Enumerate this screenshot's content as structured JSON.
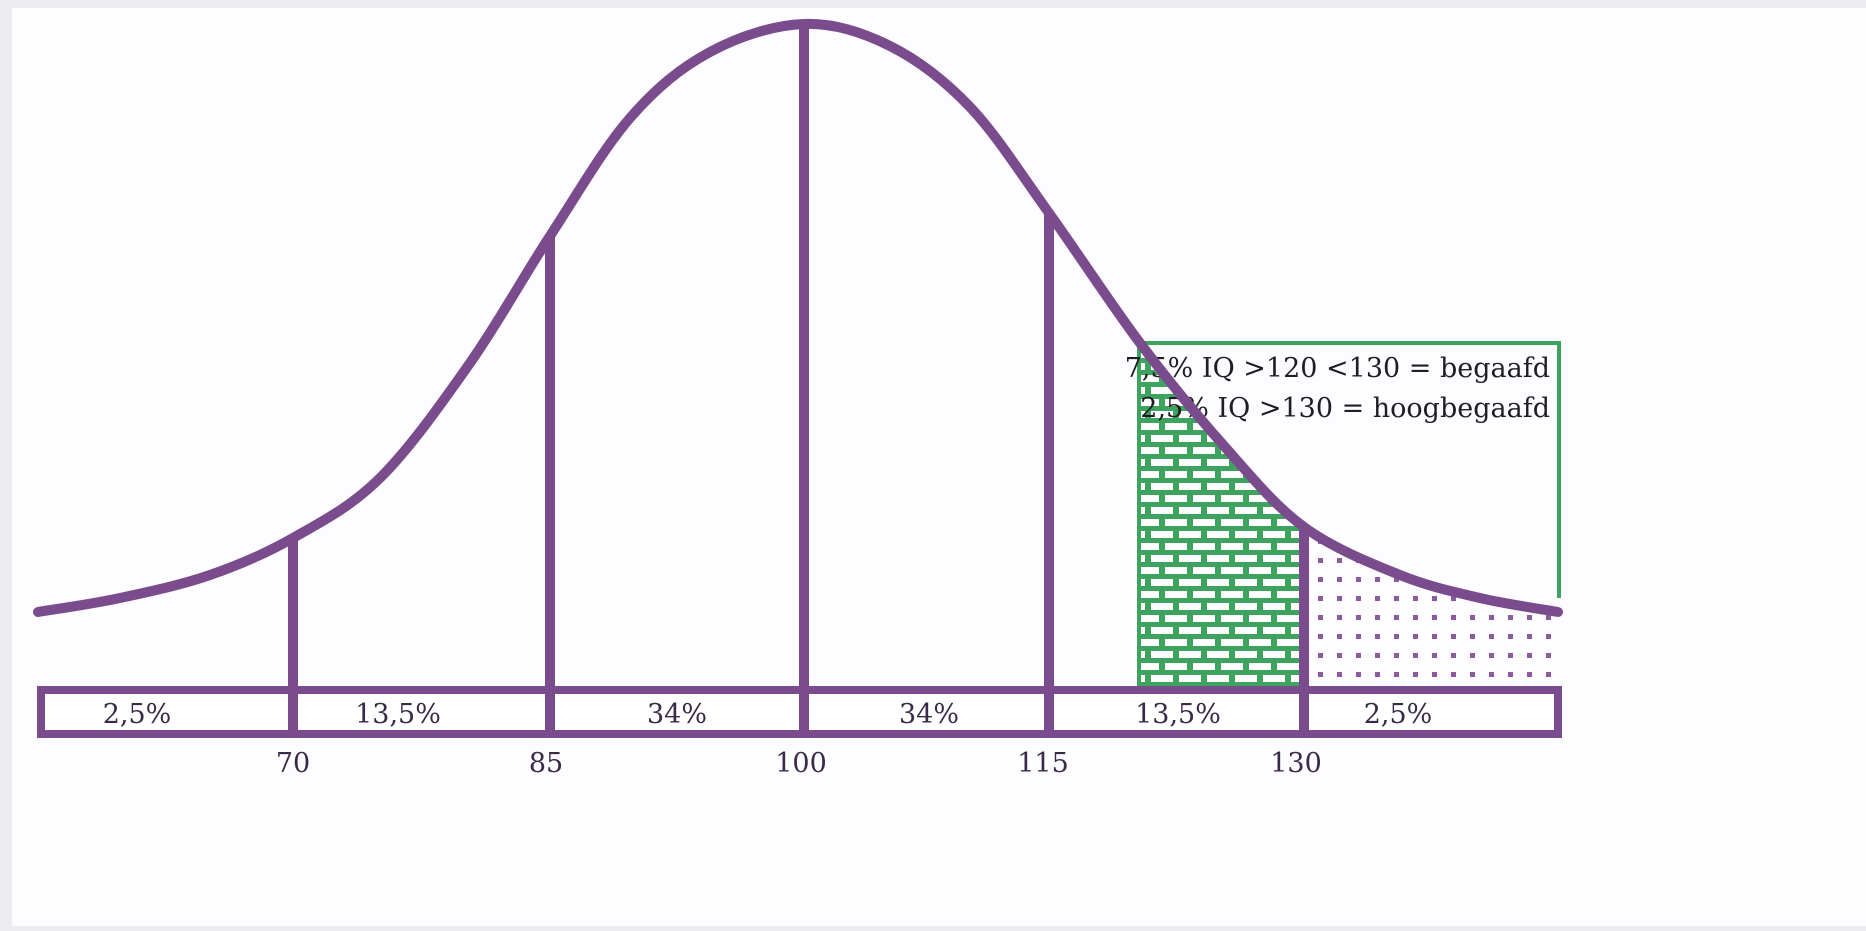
{
  "diagram": {
    "colors": {
      "curve": "#7a4c8e",
      "highlight": "#3ea35e",
      "background": "#fdfcfe",
      "frame": "#ececef"
    },
    "x_ticks": [
      "70",
      "85",
      "100",
      "115",
      "130"
    ],
    "bands": [
      "2,5%",
      "13,5%",
      "34%",
      "34%",
      "13,5%",
      "2,5%"
    ],
    "legend": {
      "line1": "7,5% IQ >120 <130 = begaafd",
      "line2": "2,5% IQ >130 = hoogbegaafd"
    },
    "shading": [
      {
        "range": "120-130",
        "pattern": "brick",
        "color": "green"
      },
      {
        "range": ">130",
        "pattern": "dots",
        "color": "purple"
      }
    ]
  }
}
